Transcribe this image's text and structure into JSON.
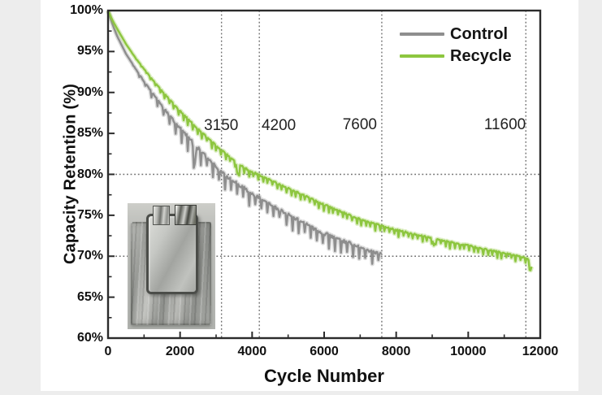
{
  "page": {
    "background": "#ededed",
    "figure_background": "#ffffff"
  },
  "chart_data": {
    "type": "line",
    "title": "",
    "xlabel": "Cycle Number",
    "ylabel": "Capacity Retention (%)",
    "xlim": [
      0,
      12000
    ],
    "ylim": [
      60,
      100
    ],
    "grid": false,
    "axis_color": "#2b2b2b",
    "tick_direction": "in",
    "x_tick_values": [
      0,
      2000,
      4000,
      6000,
      8000,
      10000,
      12000
    ],
    "x_tick_labels": [
      "0",
      "2000",
      "4000",
      "6000",
      "8000",
      "10000",
      "12000"
    ],
    "x_minor_ticks": [
      1000,
      3000,
      5000,
      7000,
      9000,
      11000
    ],
    "y_tick_values": [
      60,
      65,
      70,
      75,
      80,
      85,
      90,
      95,
      100
    ],
    "y_tick_labels": [
      "60%",
      "65%",
      "70%",
      "75%",
      "80%",
      "85%",
      "90%",
      "95%",
      "100%"
    ],
    "y_minor_ticks": [
      62.5,
      67.5,
      72.5,
      77.5,
      82.5,
      87.5,
      92.5,
      97.5
    ],
    "reference_line_color": "#6e6e6e",
    "reference_lines": {
      "vertical_cycles": [
        3150,
        4200,
        7600,
        11600
      ],
      "horizontal_percents": [
        80,
        70
      ]
    },
    "annotations": [
      {
        "text": "3150",
        "cycle": 3140,
        "percent": 85.9
      },
      {
        "text": "4200",
        "cycle": 4740,
        "percent": 85.9
      },
      {
        "text": "7600",
        "cycle": 6990,
        "percent": 86.0
      },
      {
        "text": "11600",
        "cycle": 11020,
        "percent": 86.0
      }
    ],
    "legend": {
      "position": "top-right",
      "items": [
        {
          "label": "Control",
          "color": "#8e8e8e"
        },
        {
          "label": "Recycle",
          "color": "#8dc63f"
        }
      ]
    },
    "series": [
      {
        "name": "Control",
        "color": "#8e8e8e",
        "noise_amp": 1.35,
        "tooth_period": 170,
        "dips": [
          [
            2400,
            2.6
          ]
        ],
        "points": [
          [
            0,
            100
          ],
          [
            100,
            98.6
          ],
          [
            250,
            96.9
          ],
          [
            500,
            94.7
          ],
          [
            750,
            93.0
          ],
          [
            1000,
            91.4
          ],
          [
            1250,
            89.9
          ],
          [
            1500,
            88.4
          ],
          [
            1750,
            87.1
          ],
          [
            2000,
            85.8
          ],
          [
            2250,
            84.6
          ],
          [
            2500,
            83.4
          ],
          [
            2750,
            82.2
          ],
          [
            3000,
            81.1
          ],
          [
            3150,
            80.5
          ],
          [
            3300,
            79.9
          ],
          [
            3500,
            79.3
          ],
          [
            3750,
            78.6
          ],
          [
            4000,
            77.9
          ],
          [
            4250,
            77.2
          ],
          [
            4500,
            76.5
          ],
          [
            4750,
            75.9
          ],
          [
            5000,
            75.3
          ],
          [
            5250,
            74.7
          ],
          [
            5500,
            74.1
          ],
          [
            5750,
            73.5
          ],
          [
            6000,
            73.0
          ],
          [
            6250,
            72.5
          ],
          [
            6500,
            72.1
          ],
          [
            6750,
            71.7
          ],
          [
            7000,
            71.3
          ],
          [
            7250,
            70.9
          ],
          [
            7600,
            70.4
          ]
        ]
      },
      {
        "name": "Recycle",
        "color": "#8dc63f",
        "noise_amp": 0.6,
        "tooth_period": 130,
        "dips": [
          [
            3600,
            1.7
          ],
          [
            9050,
            0.9
          ],
          [
            11730,
            1.1
          ]
        ],
        "points": [
          [
            0,
            100
          ],
          [
            100,
            99.0
          ],
          [
            250,
            97.8
          ],
          [
            500,
            95.9
          ],
          [
            750,
            94.3
          ],
          [
            1000,
            92.9
          ],
          [
            1250,
            91.5
          ],
          [
            1500,
            90.2
          ],
          [
            1750,
            89.0
          ],
          [
            2000,
            87.8
          ],
          [
            2250,
            86.7
          ],
          [
            2500,
            85.6
          ],
          [
            2750,
            84.6
          ],
          [
            3000,
            83.6
          ],
          [
            3250,
            82.7
          ],
          [
            3500,
            81.8
          ],
          [
            3750,
            81.0
          ],
          [
            4000,
            80.4
          ],
          [
            4200,
            80.0
          ],
          [
            4500,
            79.4
          ],
          [
            4750,
            78.9
          ],
          [
            5000,
            78.4
          ],
          [
            5250,
            77.9
          ],
          [
            5500,
            77.4
          ],
          [
            5750,
            76.9
          ],
          [
            6000,
            76.4
          ],
          [
            6250,
            75.9
          ],
          [
            6500,
            75.5
          ],
          [
            6750,
            75.0
          ],
          [
            7000,
            74.6
          ],
          [
            7300,
            74.2
          ],
          [
            7600,
            73.8
          ],
          [
            8000,
            73.3
          ],
          [
            8500,
            72.8
          ],
          [
            9000,
            72.3
          ],
          [
            9500,
            71.8
          ],
          [
            10000,
            71.4
          ],
          [
            10500,
            70.9
          ],
          [
            11000,
            70.5
          ],
          [
            11300,
            70.2
          ],
          [
            11600,
            69.9
          ],
          [
            11780,
            69.3
          ]
        ]
      }
    ],
    "inset_photo": {
      "content": "silver aluminum-laminate pouch battery cell with two metal tabs",
      "position": "lower-left"
    }
  }
}
